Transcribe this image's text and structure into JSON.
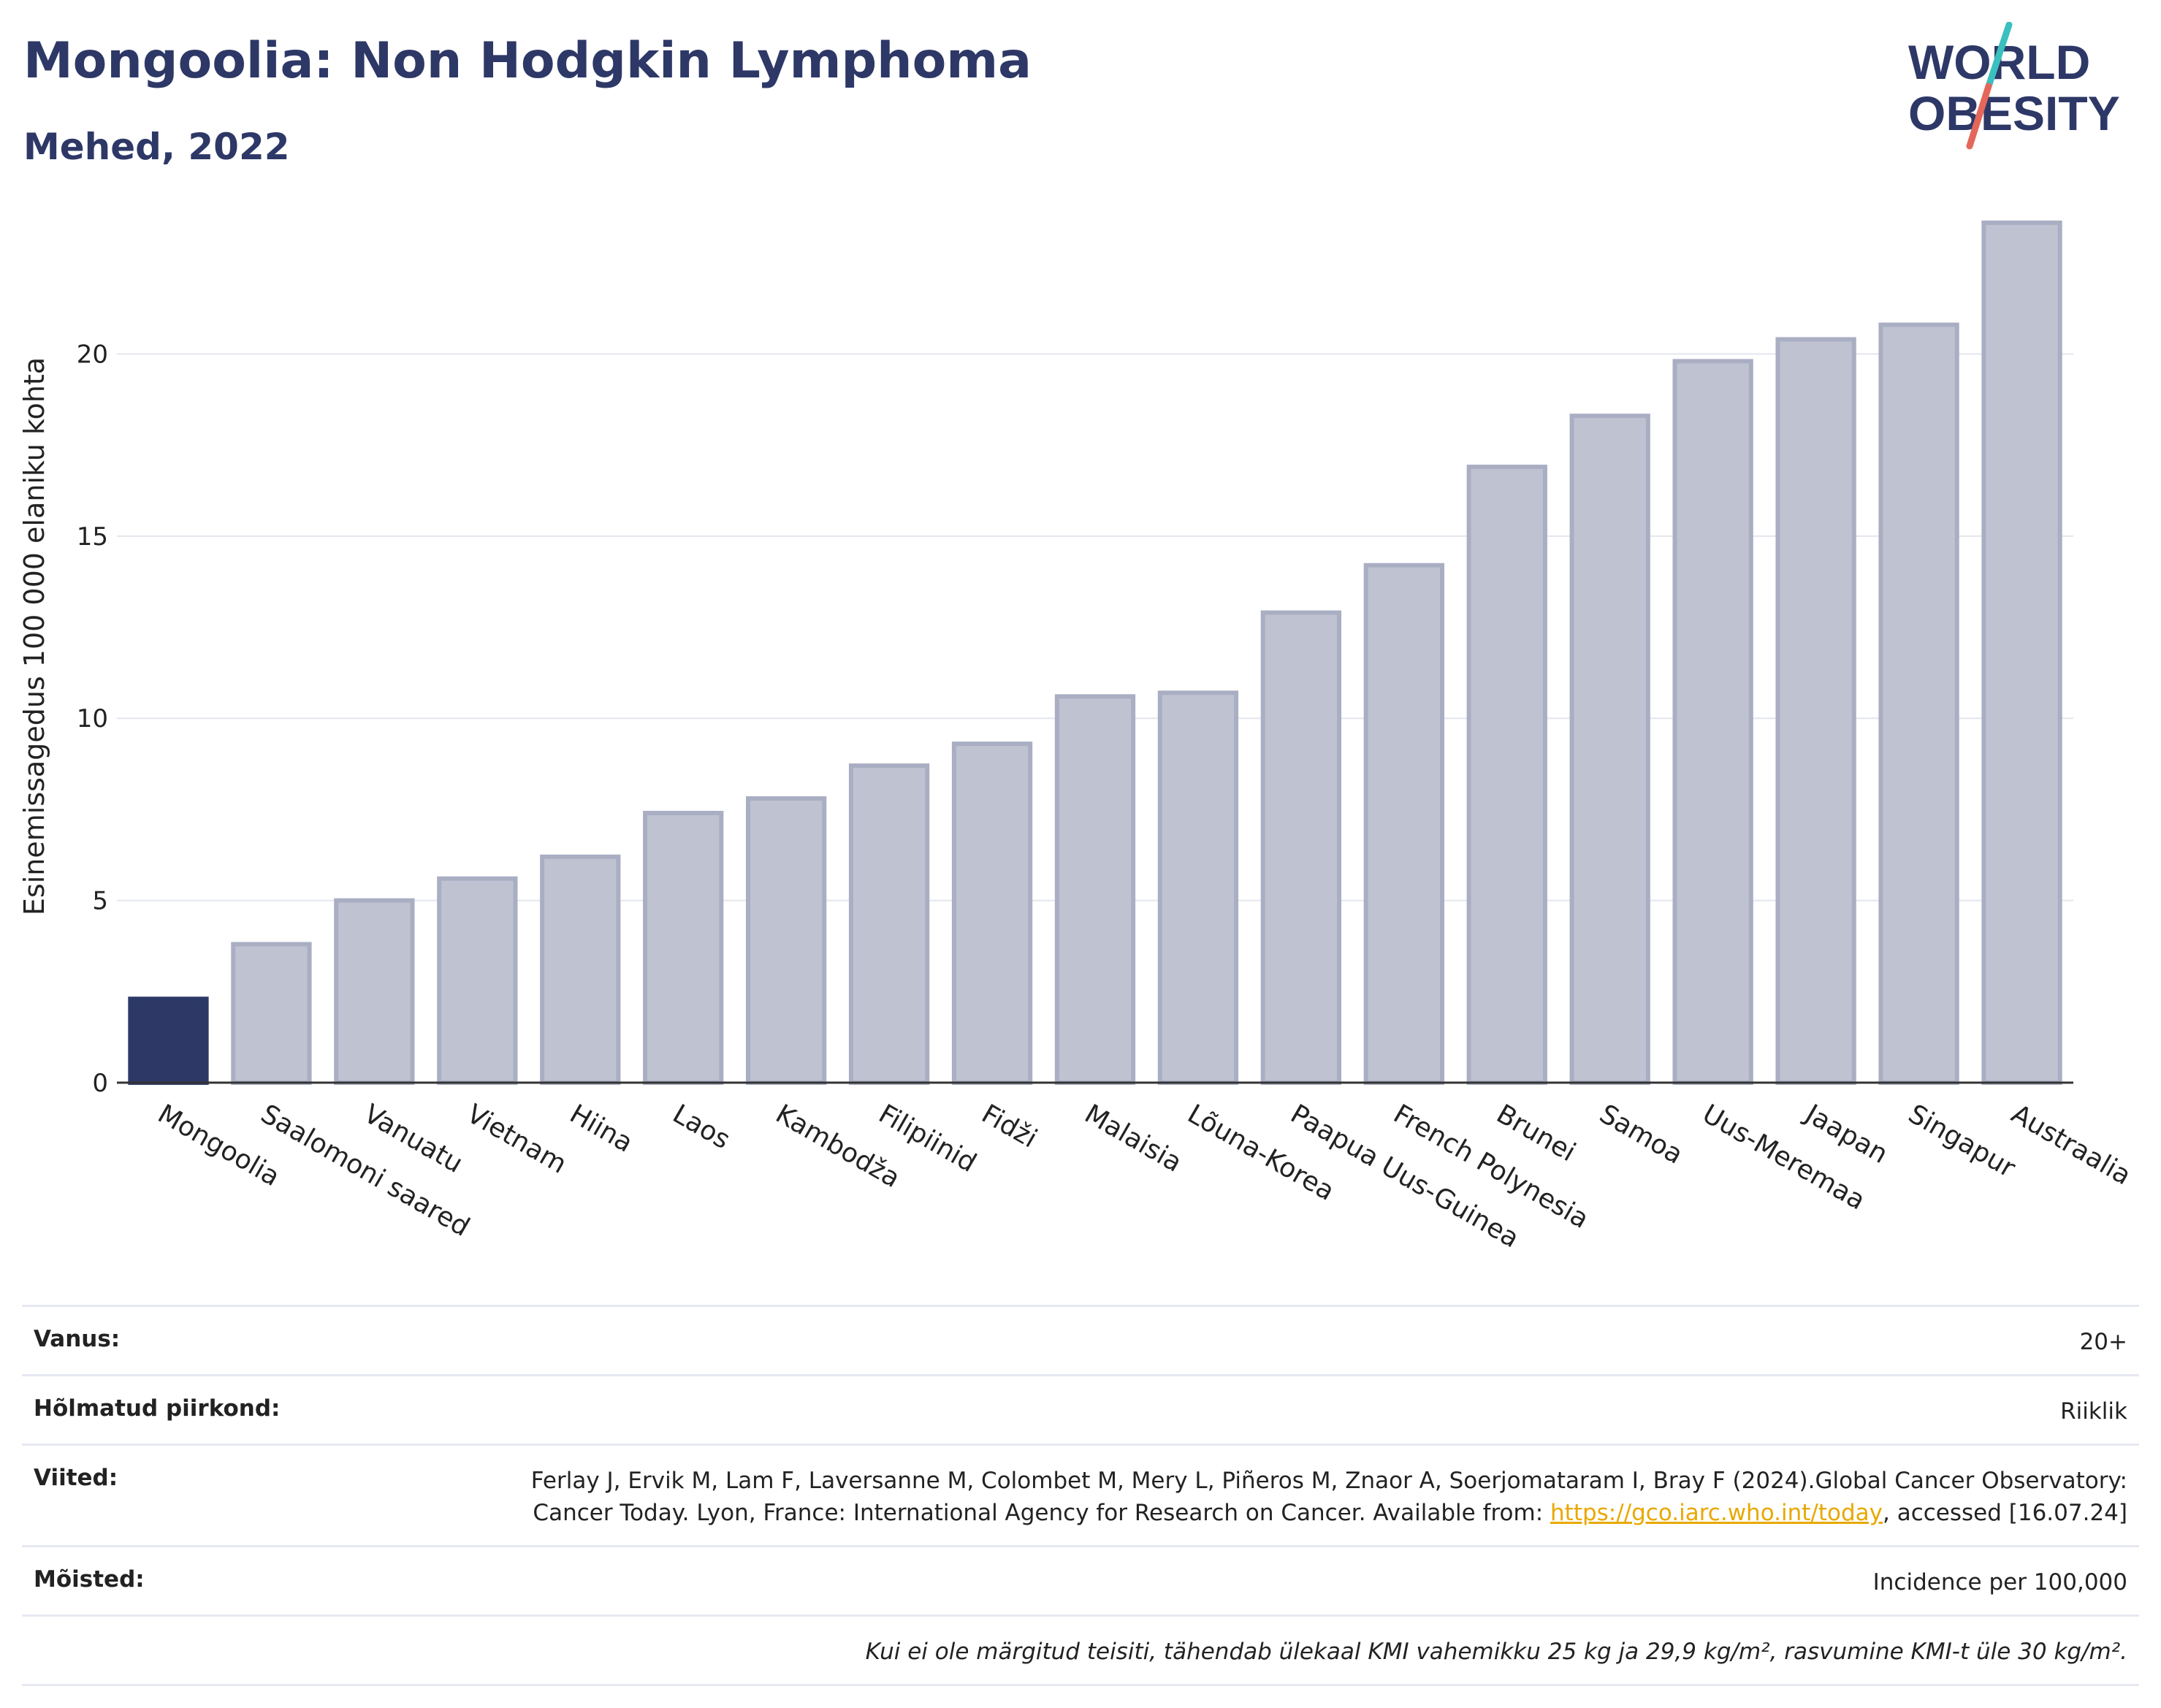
{
  "header": {
    "title": "Mongoolia: Non Hodgkin Lymphoma",
    "subtitle": "Mehed, 2022"
  },
  "logo": {
    "line1": "WORLD",
    "line2": "OBESITY"
  },
  "chart_data": {
    "type": "bar",
    "title": "Mongoolia: Non Hodgkin Lymphoma",
    "subtitle": "Mehed, 2022",
    "xlabel": "",
    "ylabel": "Esinemissagedus 100 000 elaniku kohta",
    "ylim": [
      0,
      24.5
    ],
    "yticks": [
      0,
      5,
      10,
      15,
      20
    ],
    "grid": true,
    "categories": [
      "Mongoolia",
      "Saalomoni saared",
      "Vanuatu",
      "Vietnam",
      "Hiina",
      "Laos",
      "Kambodža",
      "Filipiinid",
      "Fidži",
      "Malaisia",
      "Lõuna-Korea",
      "Paapua Uus-Guinea",
      "French Polynesia",
      "Brunei",
      "Samoa",
      "Uus-Meremaa",
      "Jaapan",
      "Singapur",
      "Austraalia"
    ],
    "values": [
      2.3,
      3.8,
      5.0,
      5.6,
      6.2,
      7.4,
      7.8,
      8.7,
      9.3,
      10.6,
      10.7,
      12.9,
      14.2,
      16.9,
      18.3,
      19.8,
      20.4,
      20.8,
      23.6
    ],
    "highlight": "Mongoolia",
    "colors": {
      "highlight": "#2d3867",
      "bar_fill": "#bfc3d1",
      "bar_stroke": "#a9aec3",
      "grid": "#e4e6ee",
      "axis": "#333333"
    }
  },
  "info": {
    "rows": [
      {
        "label": "Vanus:",
        "value": "20+"
      },
      {
        "label": "Hõlmatud piirkond:",
        "value": "Riiklik"
      },
      {
        "label": "Viited:",
        "value_pre": "Ferlay J, Ervik M, Lam F, Laversanne M, Colombet M, Mery L, Piñeros M, Znaor A, Soerjomataram I, Bray F (2024).Global Cancer Observatory: Cancer Today. Lyon, France: International Agency for Research on Cancer. Available from: ",
        "link": "https://gco.iarc.who.int/today",
        "value_post": ", accessed [16.07.24]"
      },
      {
        "label": "Mõisted:",
        "value": "Incidence per 100,000"
      }
    ],
    "note": "Kui ei ole märgitud teisiti, tähendab ülekaal KMI vahemikku 25 kg ja 29,9 kg/m², rasvumine KMI-t üle 30 kg/m²."
  }
}
